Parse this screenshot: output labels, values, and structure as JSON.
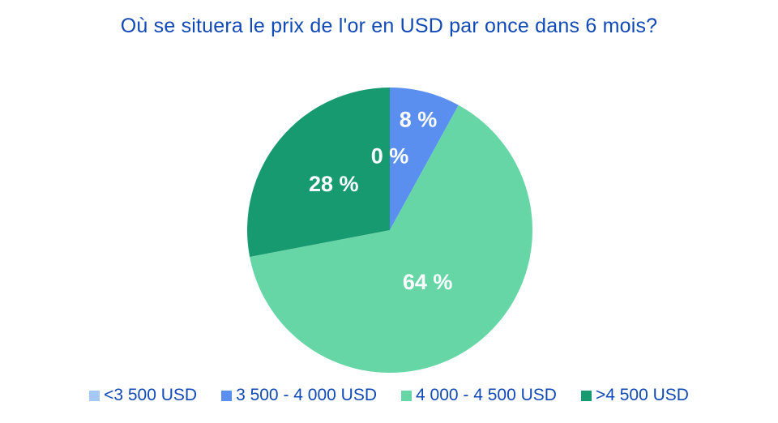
{
  "chart_data": {
    "type": "pie",
    "title": "Où se situera le prix de l'or en USD par once dans 6 mois?",
    "title_color": "#1149B5",
    "legend_position": "bottom",
    "legend_text_color": "#1149B5",
    "label_text_color": "#FFFFFF",
    "start_angle_deg": 0,
    "direction": "clockwise",
    "background": "#FFFFFF",
    "slices": [
      {
        "label": "<3 500 USD",
        "value": 0,
        "display": "0 %",
        "color": "#A6C8F5",
        "label_radius_factor": 0.52
      },
      {
        "label": "3 500 - 4 000 USD",
        "value": 8,
        "display": "8 %",
        "color": "#5A8FF0",
        "label_radius_factor": 0.8
      },
      {
        "label": "4 000 - 4 500 USD",
        "value": 64,
        "display": "64 %",
        "color": "#67D6A6",
        "label_radius_factor": 0.45
      },
      {
        "label": ">4 500 USD",
        "value": 28,
        "display": "28 %",
        "color": "#189A71",
        "label_radius_factor": 0.51
      }
    ]
  }
}
